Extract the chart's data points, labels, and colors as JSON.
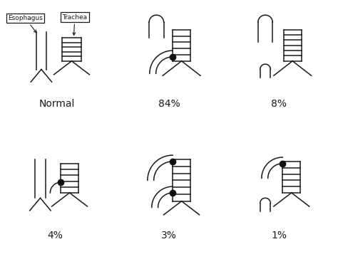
{
  "labels": [
    "Normal",
    "84%",
    "8%",
    "4%",
    "3%",
    "1%"
  ],
  "background_color": "#ffffff",
  "line_color": "#1a1a1a",
  "dot_color": "#111111",
  "label_fontsize": 10,
  "esophagus_label": "Esophagus",
  "trachea_label": "Trachea"
}
